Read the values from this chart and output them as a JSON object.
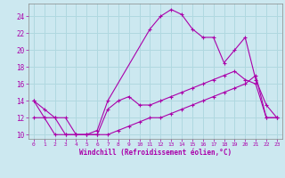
{
  "xlabel": "Windchill (Refroidissement éolien,°C)",
  "background_color": "#cce8f0",
  "grid_color": "#b0d8e0",
  "line_color": "#aa00aa",
  "xlim": [
    -0.5,
    23.5
  ],
  "ylim": [
    9.5,
    25.5
  ],
  "xticks": [
    0,
    1,
    2,
    3,
    4,
    5,
    6,
    7,
    8,
    9,
    10,
    11,
    12,
    13,
    14,
    15,
    16,
    17,
    18,
    19,
    20,
    21,
    22,
    23
  ],
  "yticks": [
    10,
    12,
    14,
    16,
    18,
    20,
    22,
    24
  ],
  "series": [
    {
      "x": [
        0,
        1,
        2,
        3,
        4,
        5,
        6,
        7,
        11,
        12,
        13,
        14,
        15,
        16,
        17,
        18,
        19,
        20,
        21,
        22,
        23
      ],
      "y": [
        14,
        13,
        12,
        10,
        10,
        10,
        10.5,
        14,
        22.5,
        24,
        24.8,
        24.2,
        22.5,
        21.5,
        21.5,
        18.5,
        20,
        21.5,
        16.5,
        13.5,
        12
      ]
    },
    {
      "x": [
        0,
        1,
        2,
        3,
        4,
        5,
        6,
        7,
        8,
        9,
        10,
        11,
        12,
        13,
        14,
        15,
        16,
        17,
        18,
        19,
        20,
        21,
        22,
        23
      ],
      "y": [
        14,
        12,
        12,
        12,
        10,
        10,
        10,
        13,
        14,
        14.5,
        13.5,
        13.5,
        14,
        14.5,
        15,
        15.5,
        16,
        16.5,
        17,
        17.5,
        16.5,
        16,
        12,
        12
      ]
    },
    {
      "x": [
        0,
        1,
        2,
        3,
        4,
        5,
        6,
        7,
        8,
        9,
        10,
        11,
        12,
        13,
        14,
        15,
        16,
        17,
        18,
        19,
        20,
        21,
        22,
        23
      ],
      "y": [
        12,
        12,
        10,
        10,
        10,
        10,
        10,
        10,
        10.5,
        11,
        11.5,
        12,
        12,
        12.5,
        13,
        13.5,
        14,
        14.5,
        15,
        15.5,
        16,
        17,
        12,
        12
      ]
    }
  ]
}
